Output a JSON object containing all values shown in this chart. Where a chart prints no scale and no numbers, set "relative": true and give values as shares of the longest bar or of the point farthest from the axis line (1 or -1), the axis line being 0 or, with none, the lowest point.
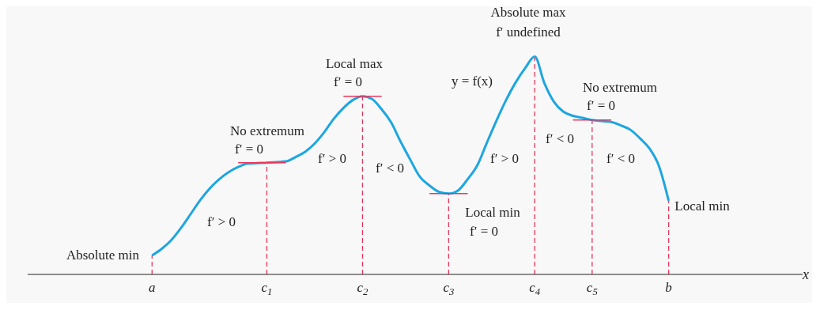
{
  "chart_data": {
    "type": "line",
    "relative": true,
    "xlabel": "x",
    "categories": [
      null,
      null,
      null,
      null,
      null,
      null,
      null,
      null,
      null,
      null,
      null,
      null,
      null,
      "a",
      null,
      null,
      null,
      null,
      null,
      null,
      null,
      null,
      null,
      null,
      null,
      "c$_{1}$",
      null,
      null,
      null,
      null,
      null,
      null,
      null,
      null,
      null,
      "c$_{2}$",
      null,
      null,
      null,
      null,
      null,
      null,
      null,
      null,
      "c$_{3}$",
      null,
      null,
      null,
      null,
      null,
      null,
      null,
      null,
      "c$_{4}$",
      null,
      null,
      null,
      null,
      null,
      "c$_{5}$",
      null,
      null,
      null,
      null,
      null,
      null,
      null,
      "b",
      null,
      null,
      null,
      null,
      null,
      null,
      null,
      null,
      null,
      null,
      null,
      null,
      null,
      null
    ],
    "marker": "none",
    "grid": false,
    "legend": false,
    "series": [
      {
        "color": "#1ea6e0",
        "values": [
          null,
          null,
          null,
          null,
          null,
          null,
          null,
          null,
          null,
          null,
          null,
          null,
          null,
          0.087,
          0.117,
          0.157,
          0.212,
          0.275,
          0.339,
          0.393,
          0.436,
          0.469,
          0.493,
          0.509,
          0.511,
          0.513,
          0.516,
          0.519,
          0.539,
          0.563,
          0.601,
          0.653,
          0.715,
          0.764,
          0.801,
          0.818,
          0.805,
          0.758,
          0.697,
          0.608,
          0.526,
          0.448,
          0.408,
          0.379,
          0.371,
          0.386,
          0.438,
          0.501,
          0.605,
          0.706,
          0.8,
          0.881,
          0.947,
          1,
          0.879,
          0.793,
          0.747,
          0.728,
          0.719,
          0.709,
          0.704,
          0.7,
          0.684,
          0.664,
          0.625,
          0.578,
          0.496,
          0.338,
          null,
          null,
          null,
          null,
          null,
          null,
          null,
          null,
          null,
          null,
          null,
          null,
          null,
          null
        ]
      },
      {
        "color": "#e8365a",
        "values": [
          null,
          null,
          null,
          null,
          null,
          null,
          null,
          null,
          null,
          null,
          null,
          null,
          null,
          null,
          null,
          null,
          null,
          null,
          null,
          null,
          null,
          null,
          0.513,
          0.513,
          0.513,
          0.513,
          0.513,
          0.513,
          null,
          null,
          null,
          null,
          null,
          null,
          null,
          null,
          null,
          null,
          null,
          null,
          null,
          null,
          null,
          null,
          null,
          null,
          null,
          null,
          null,
          null,
          null,
          null,
          null,
          null,
          null,
          null,
          null,
          null,
          null,
          null,
          null,
          null,
          null,
          null,
          null,
          null,
          null,
          null,
          null,
          null,
          null,
          null,
          null,
          null,
          null,
          null,
          null,
          null,
          null,
          null,
          null,
          null
        ]
      },
      {
        "color": "#e8365a",
        "values": [
          null,
          null,
          null,
          null,
          null,
          null,
          null,
          null,
          null,
          null,
          null,
          null,
          null,
          null,
          null,
          null,
          null,
          null,
          null,
          null,
          null,
          null,
          null,
          null,
          null,
          null,
          null,
          null,
          null,
          null,
          null,
          null,
          null,
          0.818,
          0.818,
          0.818,
          0.818,
          0.818,
          null,
          null,
          null,
          null,
          null,
          null,
          null,
          null,
          null,
          null,
          null,
          null,
          null,
          null,
          null,
          null,
          null,
          null,
          null,
          null,
          null,
          null,
          null,
          null,
          null,
          null,
          null,
          null,
          null,
          null,
          null,
          null,
          null,
          null,
          null,
          null,
          null,
          null,
          null,
          null,
          null,
          null,
          null,
          null
        ]
      },
      {
        "color": "#e8365a",
        "values": [
          null,
          null,
          null,
          null,
          null,
          null,
          null,
          null,
          null,
          null,
          null,
          null,
          null,
          null,
          null,
          null,
          null,
          null,
          null,
          null,
          null,
          null,
          null,
          null,
          null,
          null,
          null,
          null,
          null,
          null,
          null,
          null,
          null,
          null,
          null,
          null,
          null,
          null,
          null,
          null,
          null,
          null,
          0.371,
          0.371,
          0.371,
          0.371,
          0.371,
          null,
          null,
          null,
          null,
          null,
          null,
          null,
          null,
          null,
          null,
          null,
          null,
          null,
          null,
          null,
          null,
          null,
          null,
          null,
          null,
          null,
          null,
          null,
          null,
          null,
          null,
          null,
          null,
          null,
          null,
          null,
          null,
          null,
          null,
          null
        ]
      },
      {
        "color": "#e8365a",
        "values": [
          null,
          null,
          null,
          null,
          null,
          null,
          null,
          null,
          null,
          null,
          null,
          null,
          null,
          null,
          null,
          null,
          null,
          null,
          null,
          null,
          null,
          null,
          null,
          null,
          null,
          null,
          null,
          null,
          null,
          null,
          null,
          null,
          null,
          null,
          null,
          null,
          null,
          null,
          null,
          null,
          null,
          null,
          null,
          null,
          null,
          null,
          null,
          null,
          null,
          null,
          null,
          null,
          null,
          null,
          null,
          null,
          null,
          0.709,
          0.709,
          0.709,
          0.709,
          0.709,
          null,
          null,
          null,
          null,
          null,
          null,
          null,
          null,
          null,
          null,
          null,
          null,
          null,
          null,
          null,
          null,
          null,
          null,
          null,
          null
        ]
      }
    ],
    "ref_lines": [
      {
        "axis": "x",
        "value": "a",
        "color": "#e8365a",
        "line_style": "dashed"
      },
      {
        "axis": "x",
        "value": "c$_{1}$",
        "color": "#e8365a",
        "line_style": "dashed"
      },
      {
        "axis": "x",
        "value": "c$_{2}$",
        "color": "#e8365a",
        "line_style": "dashed"
      },
      {
        "axis": "x",
        "value": "c$_{3}$",
        "color": "#e8365a",
        "line_style": "dashed"
      },
      {
        "axis": "x",
        "value": "c$_{4}$",
        "color": "#e8365a",
        "line_style": "dashed"
      },
      {
        "axis": "x",
        "value": "c$_{5}$",
        "color": "#e8365a",
        "line_style": "dashed"
      },
      {
        "axis": "x",
        "value": "b",
        "color": "#e8365a",
        "line_style": "dashed"
      }
    ],
    "annotations": [
      "Absolute min",
      "f′ > 0",
      "No extremum",
      "f′ = 0",
      "f′ > 0",
      "Local max",
      "f′ = 0",
      "f′ < 0",
      "Local min",
      "f′ = 0",
      "y = f(x)",
      "f′ > 0",
      "Absolute max",
      "f′  undefined",
      "f′ < 0",
      "No extremum",
      "f′ = 0",
      "f′ < 0",
      "Local min"
    ]
  }
}
